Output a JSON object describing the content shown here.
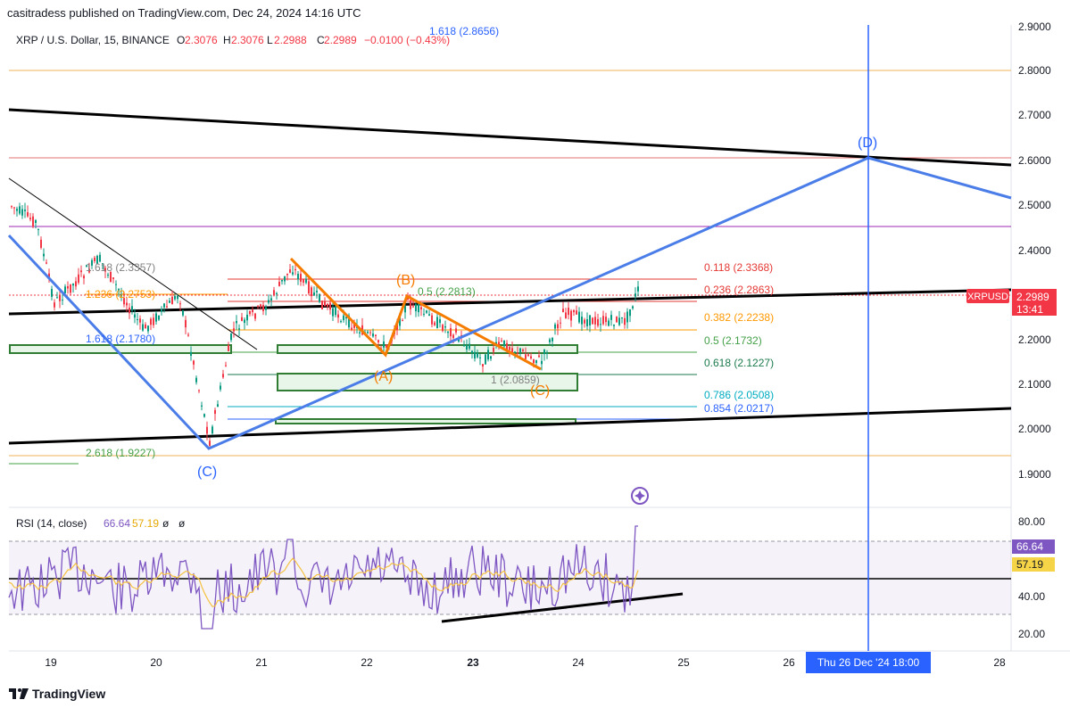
{
  "publish": {
    "text": "casitradess published on TradingView.com, Dec 24, 2024 14:16 UTC"
  },
  "symbol": {
    "title": "XRP / U.S. Dollar, 15, BINANCE",
    "o_label": "O",
    "o": "2.3076",
    "h_label": "H",
    "h": "2.3076",
    "l_label": "L",
    "l": "2.2988",
    "c_label": "C",
    "c": "2.2989",
    "change": "−0.0100 (−0.43%)"
  },
  "price_badge": {
    "symbol": "XRPUSD",
    "price": "2.2989",
    "countdown": "13:41"
  },
  "rsi": {
    "title": "RSI (14, close)",
    "value": "66.64",
    "ma": "57.19",
    "extra1": "ø",
    "extra2": "ø"
  },
  "price_axis": [
    "2.9000",
    "2.8000",
    "2.7000",
    "2.6000",
    "2.5000",
    "2.4000",
    "2.3000",
    "2.2000",
    "2.1000",
    "2.0000",
    "1.9000"
  ],
  "rsi_axis": [
    "80.00",
    "40.00",
    "20.00"
  ],
  "time_axis": [
    "19",
    "20",
    "21",
    "22",
    "23",
    "24",
    "25",
    "26",
    "28"
  ],
  "crosshair_date": "Thu 26 Dec '24   18:00",
  "fib_right": [
    {
      "text": "0.118 (2.3368)",
      "color": "#e53935"
    },
    {
      "text": "0.236 (2.2863)",
      "color": "#e53935"
    },
    {
      "text": "0.382 (2.2238)",
      "color": "#ff9800"
    },
    {
      "text": "0.5 (2.1732)",
      "color": "#43a047"
    },
    {
      "text": "0.618 (2.1227)",
      "color": "#1b7a4c"
    },
    {
      "text": "0.786 (2.0508)",
      "color": "#00acc1"
    },
    {
      "text": "0.854 (2.0217)",
      "color": "#2962ff"
    }
  ],
  "fib_left": [
    {
      "text": "1.618 (2.8656)",
      "color": "#2962ff"
    },
    {
      "text": "1.618 (2.3357)",
      "color": "#808080"
    },
    {
      "text": "1.236 (2.2753)",
      "color": "#ff9800"
    },
    {
      "text": "1.618 (2.1780)",
      "color": "#2962ff"
    },
    {
      "text": "2.618 (1.9227)",
      "color": "#43a047"
    },
    {
      "text": "0.5 (2.2813)",
      "color": "#43a047"
    },
    {
      "text": "1 (2.0859)",
      "color": "#808080"
    }
  ],
  "wave_labels": {
    "c_blue": "(C)",
    "d_blue": "(D)",
    "a_orange": "(A)",
    "b_orange": "(B)",
    "c_orange": "(C)"
  },
  "colors": {
    "blue": "#2962ff",
    "wave_blue": "#4a7de8",
    "orange": "#f57c00",
    "green": "#2e7d32",
    "red": "#f23645",
    "purple": "#7e57c2",
    "yellow": "#f5c242"
  },
  "footer": {
    "brand": "TradingView"
  }
}
